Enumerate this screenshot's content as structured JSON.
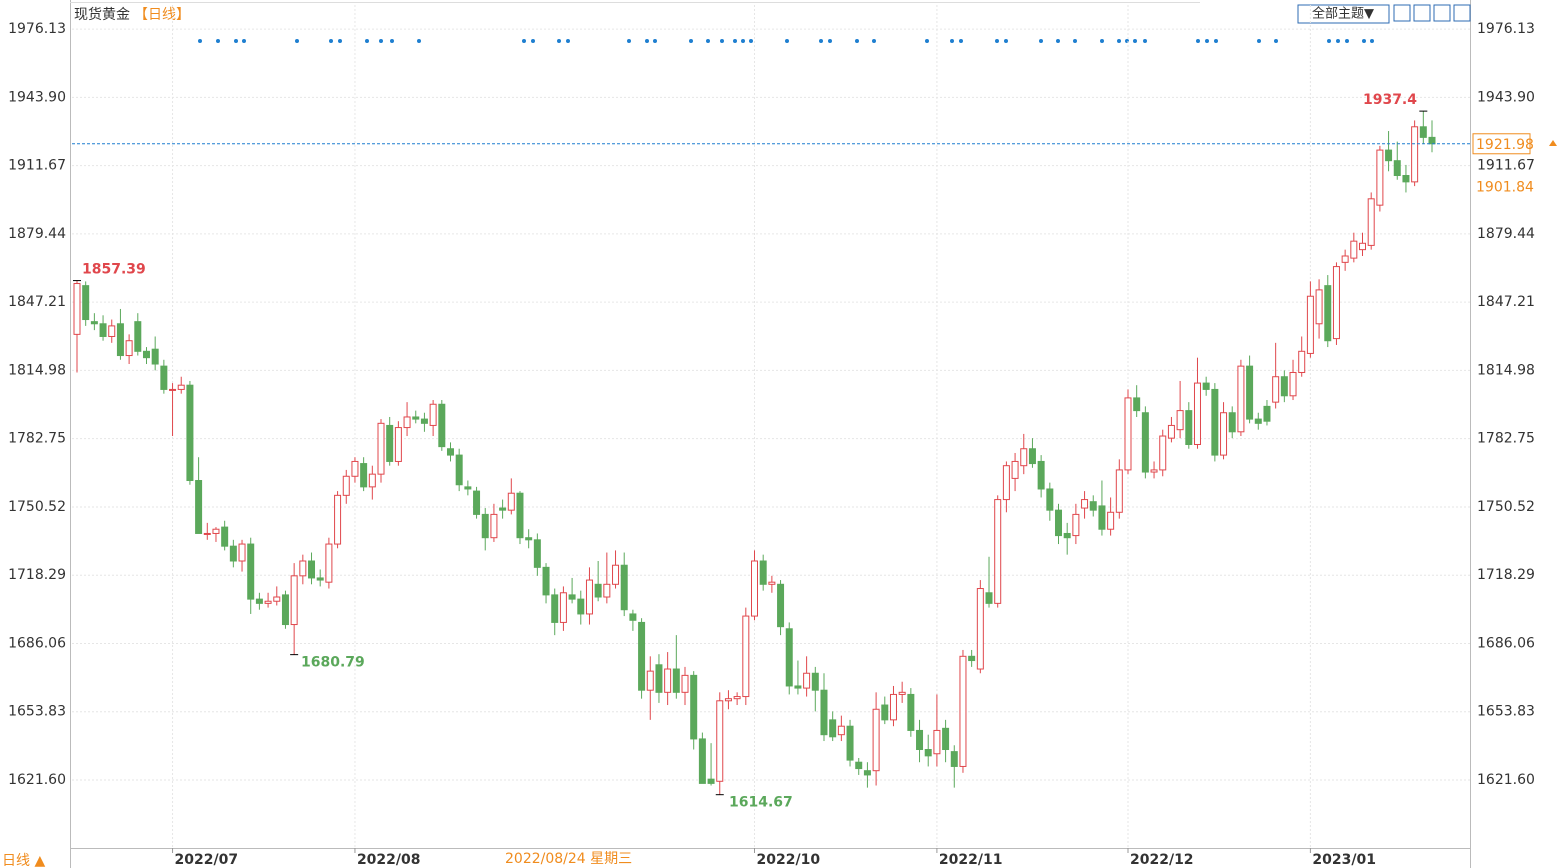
{
  "chart_data": {
    "type": "candlestick",
    "title": "现货黄金",
    "title_tag": "【日线】",
    "theme_button": "全部主题▼",
    "period_button": "日线 ▲",
    "crosshair_label": "2022/08/24 星期三",
    "price_marker": 1901.84,
    "up_color": "#e0474c",
    "down_color": "#5ba85b",
    "grid": true,
    "ylim": [
      1589.5,
      1987.5
    ],
    "yticks": [
      1976.13,
      {
        "value": 1943.9,
        "label": "1943.90"
      },
      1911.67,
      1879.44,
      1847.21,
      1814.98,
      1782.75,
      1750.52,
      1718.29,
      1686.06,
      1653.83,
      {
        "value": 1621.6,
        "label": "1621.60"
      }
    ],
    "categories": [
      null,
      null,
      null,
      null,
      null,
      null,
      null,
      null,
      null,
      null,
      null,
      "2022/07",
      null,
      null,
      null,
      null,
      null,
      null,
      null,
      null,
      null,
      null,
      null,
      null,
      null,
      null,
      null,
      null,
      null,
      null,
      null,
      null,
      "2022/08",
      null,
      null,
      null,
      null,
      null,
      null,
      null,
      null,
      null,
      null,
      null,
      null,
      null,
      null,
      null,
      null,
      null,
      null,
      null,
      null,
      null,
      null,
      null,
      null,
      null,
      null,
      null,
      null,
      null,
      null,
      null,
      null,
      null,
      null,
      null,
      null,
      null,
      null,
      null,
      null,
      null,
      null,
      null,
      null,
      null,
      "2022/10",
      null,
      null,
      null,
      null,
      null,
      null,
      null,
      null,
      null,
      null,
      null,
      null,
      null,
      null,
      null,
      null,
      null,
      null,
      null,
      null,
      "2022/11",
      null,
      null,
      null,
      null,
      null,
      null,
      null,
      null,
      null,
      null,
      null,
      null,
      null,
      null,
      null,
      null,
      null,
      null,
      null,
      null,
      null,
      "2022/12",
      null,
      null,
      null,
      null,
      null,
      null,
      null,
      null,
      null,
      null,
      null,
      null,
      null,
      null,
      null,
      null,
      null,
      null,
      null,
      null,
      "2023/01",
      null,
      null,
      null,
      null,
      null,
      null,
      null,
      null,
      null,
      null,
      null,
      null,
      null,
      null
    ],
    "open": [
      1832,
      1855,
      1838,
      1837,
      1831,
      1837,
      1822,
      1838,
      1824,
      1825,
      1817,
      1806,
      1806,
      1808,
      1763,
      1738,
      1738,
      1741,
      1732,
      1725,
      1733,
      1707,
      1705,
      1706,
      1709,
      1695,
      1718,
      1725,
      1717,
      1715,
      1733,
      1756,
      1765,
      1771,
      1760,
      1766,
      1789,
      1772,
      1788,
      1793,
      1792,
      1789,
      1799,
      1778,
      1775,
      1760,
      1758,
      1747,
      1736,
      1750,
      1749,
      1757,
      1736,
      1735,
      1722,
      1709,
      1696,
      1709,
      1707,
      1700,
      1714,
      1708,
      1714,
      1723,
      1700,
      1696,
      1664,
      1676,
      1663,
      1674,
      1663,
      1671,
      1641,
      1622,
      1621,
      1659,
      1660,
      1661,
      1699,
      1725,
      1714,
      1714,
      1693,
      1666,
      1665,
      1672,
      1664,
      1650,
      1643,
      1647,
      1630,
      1626,
      1626,
      1657,
      1650,
      1662,
      1662,
      1645,
      1636,
      1634,
      1646,
      1635,
      1628,
      1680,
      1674,
      1710,
      1705,
      1754,
      1764,
      1770,
      1778,
      1772,
      1759,
      1749,
      1738,
      1737,
      1750,
      1753,
      1751,
      1740,
      1748,
      1768,
      1802,
      1795,
      1767,
      1768,
      1783,
      1787,
      1796,
      1780,
      1809,
      1806,
      1775,
      1795,
      1786,
      1817,
      1792,
      1798,
      1800,
      1812,
      1803,
      1814,
      1823,
      1837,
      1855,
      1830,
      1866,
      1868,
      1872,
      1874,
      1893,
      1919,
      1914,
      1907,
      1904,
      1930,
      1925
    ],
    "high": [
      1857.39,
      1857,
      1842,
      1841,
      1839,
      1844,
      1832,
      1842,
      1826,
      1831,
      1820,
      1809,
      1812,
      1810,
      1774,
      1743,
      1741,
      1744,
      1735,
      1735,
      1736,
      1710,
      1710,
      1713,
      1711,
      1724,
      1728,
      1729,
      1721,
      1736,
      1758,
      1768,
      1774,
      1774,
      1770,
      1792,
      1793,
      1791,
      1800,
      1796,
      1795,
      1801,
      1801,
      1781,
      1778,
      1763,
      1760,
      1750,
      1752,
      1754,
      1764,
      1758,
      1740,
      1738,
      1724,
      1712,
      1713,
      1717,
      1711,
      1722,
      1725,
      1729,
      1730,
      1729,
      1702,
      1698,
      1680,
      1681,
      1682,
      1690,
      1675,
      1673,
      1644,
      1639,
      1663,
      1664,
      1663,
      1703,
      1730,
      1728,
      1718,
      1716,
      1696,
      1678,
      1680,
      1675,
      1672,
      1654,
      1652,
      1650,
      1632,
      1630,
      1663,
      1661,
      1666,
      1668,
      1665,
      1650,
      1643,
      1662,
      1650,
      1638,
      1683,
      1683,
      1716,
      1727,
      1756,
      1772,
      1776,
      1785,
      1783,
      1775,
      1762,
      1752,
      1743,
      1752,
      1758,
      1756,
      1763,
      1755,
      1773,
      1806,
      1808,
      1798,
      1772,
      1787,
      1793,
      1810,
      1800,
      1821,
      1812,
      1809,
      1800,
      1798,
      1820,
      1822,
      1795,
      1801,
      1828,
      1815,
      1820,
      1831,
      1857,
      1858,
      1860,
      1866,
      1872,
      1880,
      1880,
      1899,
      1921,
      1928,
      1923,
      1912,
      1933,
      1937.4,
      1933
    ],
    "low": [
      1814,
      1836,
      1834,
      1829,
      1828,
      1820,
      1818,
      1822,
      1818,
      1815,
      1804,
      1784,
      1804,
      1761,
      1738,
      1735,
      1734,
      1730,
      1722,
      1720,
      1700,
      1702,
      1703,
      1704,
      1693,
      1680.79,
      1714,
      1714,
      1713,
      1712,
      1731,
      1752,
      1762,
      1758,
      1754,
      1762,
      1770,
      1770,
      1784,
      1790,
      1786,
      1784,
      1777,
      1772,
      1758,
      1756,
      1745,
      1730,
      1734,
      1745,
      1747,
      1733,
      1731,
      1718,
      1705,
      1690,
      1692,
      1705,
      1695,
      1695,
      1706,
      1705,
      1712,
      1699,
      1692,
      1660,
      1650,
      1658,
      1657,
      1660,
      1657,
      1636,
      1620,
      1619,
      1614.67,
      1655,
      1657,
      1657,
      1697,
      1711,
      1710,
      1690,
      1662,
      1662,
      1661,
      1654,
      1640,
      1640,
      1640,
      1628,
      1624,
      1618,
      1619,
      1648,
      1647,
      1658,
      1642,
      1630,
      1628,
      1628,
      1630,
      1618,
      1625,
      1675,
      1672,
      1703,
      1703,
      1748,
      1758,
      1766,
      1769,
      1755,
      1744,
      1733,
      1728,
      1733,
      1745,
      1746,
      1737,
      1737,
      1745,
      1766,
      1793,
      1764,
      1764,
      1765,
      1781,
      1783,
      1778,
      1778,
      1803,
      1772,
      1773,
      1783,
      1784,
      1790,
      1787,
      1789,
      1797,
      1800,
      1801,
      1812,
      1821,
      1830,
      1826,
      1827,
      1862,
      1866,
      1869,
      1872,
      1890,
      1909,
      1905,
      1899,
      1902,
      1922,
      1918
    ],
    "close": [
      1856,
      1839,
      1837,
      1831,
      1836,
      1822,
      1829,
      1824,
      1821,
      1818,
      1806,
      1806,
      1808,
      1763,
      1738,
      1738,
      1740,
      1732,
      1725,
      1733,
      1707,
      1705,
      1706,
      1708,
      1695,
      1718,
      1725,
      1717,
      1716,
      1733,
      1756,
      1765,
      1772,
      1760,
      1766,
      1790,
      1772,
      1788,
      1793,
      1792,
      1790,
      1799,
      1779,
      1775,
      1761,
      1759,
      1747,
      1736,
      1747,
      1749,
      1757,
      1736,
      1735,
      1722,
      1709,
      1696,
      1710,
      1707,
      1700,
      1716,
      1708,
      1714,
      1723,
      1702,
      1697,
      1664,
      1673,
      1663,
      1674,
      1663,
      1671,
      1641,
      1620,
      1620,
      1659,
      1660,
      1661,
      1699,
      1725,
      1714,
      1715,
      1694,
      1666,
      1665,
      1672,
      1664,
      1643,
      1642,
      1647,
      1631,
      1627,
      1624,
      1655,
      1650,
      1662,
      1663,
      1645,
      1636,
      1633,
      1645,
      1636,
      1628,
      1680,
      1678,
      1712,
      1705,
      1754,
      1770,
      1772,
      1778,
      1771,
      1759,
      1749,
      1737,
      1736,
      1747,
      1754,
      1749,
      1740,
      1748,
      1768,
      1802,
      1796,
      1767,
      1768,
      1784,
      1789,
      1796,
      1780,
      1809,
      1806,
      1775,
      1795,
      1786,
      1817,
      1792,
      1790,
      1791,
      1812,
      1803,
      1814,
      1824,
      1850,
      1853,
      1829,
      1864,
      1869,
      1876,
      1875,
      1896,
      1919,
      1914,
      1907,
      1904,
      1930,
      1925,
      1921.98
    ]
  }
}
